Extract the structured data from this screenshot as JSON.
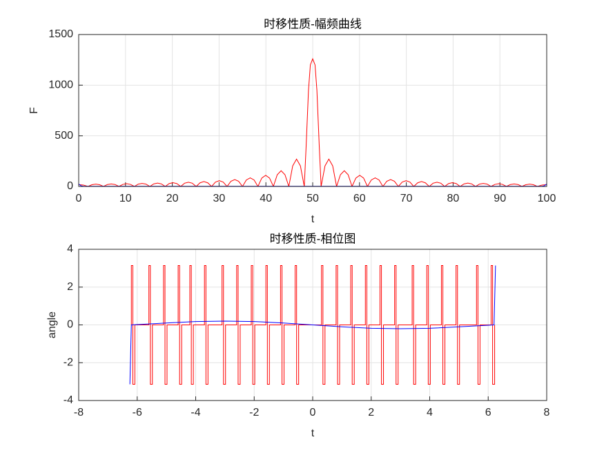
{
  "chart_data": [
    {
      "type": "line",
      "title": "时移性质-幅频曲线",
      "xlabel": "t",
      "ylabel": "F",
      "xlim": [
        0,
        100
      ],
      "ylim": [
        0,
        1500
      ],
      "xticks": [
        0,
        10,
        20,
        30,
        40,
        50,
        60,
        70,
        80,
        90,
        100
      ],
      "yticks": [
        0,
        500,
        1000,
        1500
      ],
      "grid": true,
      "series": [
        {
          "color": "#ff0000",
          "x": [
            0,
            1,
            2.0,
            2.825,
            3.65,
            4.475,
            5.3,
            6.125,
            6.95,
            7.775,
            8.6,
            9.425,
            10.25,
            11.075,
            11.9,
            12.725,
            13.55,
            14.375,
            15.2,
            16.025,
            16.85,
            17.675,
            18.5,
            19.325,
            20.15,
            20.975,
            21.8,
            22.625,
            23.45,
            24.275,
            25.1,
            25.925,
            26.75,
            27.575,
            28.4,
            29.225,
            30.05,
            30.875,
            31.7,
            32.525,
            33.35,
            34.175,
            35,
            35.825,
            36.65,
            37.475,
            38.3,
            39.125,
            39.95,
            40.775,
            41.6,
            42.425,
            43.25,
            44.075,
            44.9,
            45.725,
            46.55,
            47.375,
            48.2,
            48.6,
            49.1,
            49.5,
            50,
            50.5,
            50.9,
            51.4,
            51.8,
            52.625,
            53.45,
            54.275,
            55.1,
            55.925,
            56.75,
            57.575,
            58.4,
            59.225,
            60.05,
            60.875,
            61.7,
            62.525,
            63.35,
            64.175,
            65,
            65.825,
            66.65,
            67.475,
            68.3,
            69.125,
            69.95,
            70.775,
            71.6,
            72.425,
            73.25,
            74.075,
            74.9,
            75.725,
            76.55,
            77.375,
            78.2,
            79.025,
            79.85,
            80.675,
            81.5,
            82.325,
            83.15,
            83.975,
            84.8,
            85.625,
            86.45,
            87.275,
            88.1,
            88.925,
            89.75,
            90.575,
            91.4,
            92.225,
            93.05,
            93.875,
            94.7,
            95.525,
            96.35,
            97.175,
            98,
            99,
            100
          ],
          "values": [
            18,
            14,
            0,
            17,
            23,
            17,
            0,
            19,
            25,
            19,
            0,
            20,
            27,
            20,
            0,
            23,
            30,
            23,
            0,
            25,
            33,
            25,
            0,
            28,
            37,
            28,
            0,
            32,
            42,
            32,
            0,
            36,
            48,
            36,
            0,
            43,
            57,
            43,
            0,
            51,
            68,
            51,
            0,
            64,
            85,
            64,
            0,
            83,
            110,
            83,
            0,
            116,
            155,
            116,
            0,
            203,
            270,
            203,
            0,
            400,
            950,
            1200,
            1260,
            1200,
            950,
            400,
            0,
            203,
            270,
            203,
            0,
            116,
            155,
            116,
            0,
            83,
            110,
            83,
            0,
            64,
            85,
            64,
            0,
            51,
            68,
            51,
            0,
            43,
            57,
            43,
            0,
            36,
            48,
            36,
            0,
            32,
            42,
            32,
            0,
            28,
            37,
            28,
            0,
            25,
            33,
            25,
            0,
            23,
            30,
            23,
            0,
            20,
            27,
            20,
            0,
            19,
            25,
            19,
            0,
            17,
            23,
            17,
            0,
            14,
            18
          ]
        },
        {
          "color": "#0000ff",
          "x": [
            0,
            0.5,
            1,
            99,
            99.5,
            100
          ],
          "values": [
            25,
            6,
            2,
            2,
            6,
            25
          ]
        }
      ]
    },
    {
      "type": "line",
      "title": "时移性质-相位图",
      "xlabel": "t",
      "ylabel": "angle",
      "xlim": [
        -8,
        8
      ],
      "ylim": [
        -4,
        4
      ],
      "xticks": [
        -8,
        -6,
        -4,
        -2,
        0,
        2,
        4,
        6,
        8
      ],
      "yticks": [
        -4,
        -2,
        0,
        2,
        4
      ],
      "grid": true,
      "series": [
        {
          "color": "#ff0000",
          "x": [
            -6.2,
            -6.2,
            -6.15,
            -6.15,
            -6.08,
            -6.08,
            -5.6,
            -5.6,
            -5.55,
            -5.55,
            -5.48,
            -5.48,
            -5.1,
            -5.1,
            -5.05,
            -5.05,
            -4.98,
            -4.98,
            -4.6,
            -4.6,
            -4.55,
            -4.55,
            -4.48,
            -4.48,
            -4.2,
            -4.2,
            -4.15,
            -4.15,
            -4.08,
            -4.08,
            -3.7,
            -3.7,
            -3.65,
            -3.65,
            -3.58,
            -3.58,
            -3.1,
            -3.1,
            -3.05,
            -3.05,
            -2.98,
            -2.98,
            -2.6,
            -2.6,
            -2.55,
            -2.55,
            -2.48,
            -2.48,
            -2.1,
            -2.1,
            -2.05,
            -2.05,
            -1.98,
            -1.98,
            -1.6,
            -1.6,
            -1.55,
            -1.55,
            -1.48,
            -1.48,
            -1.1,
            -1.1,
            -1.05,
            -1.05,
            -0.98,
            -0.98,
            -0.6,
            -0.6,
            -0.55,
            -0.55,
            -0.48,
            -0.48,
            0.3,
            0.3,
            0.35,
            0.35,
            0.42,
            0.42,
            0.8,
            0.8,
            0.85,
            0.85,
            0.92,
            0.92,
            1.3,
            1.3,
            1.35,
            1.35,
            1.42,
            1.42,
            1.8,
            1.8,
            1.85,
            1.85,
            1.92,
            1.92,
            2.3,
            2.3,
            2.35,
            2.35,
            2.42,
            2.42,
            2.8,
            2.8,
            2.85,
            2.85,
            2.92,
            2.92,
            3.4,
            3.4,
            3.45,
            3.45,
            3.52,
            3.52,
            3.9,
            3.9,
            3.95,
            3.95,
            4.02,
            4.02,
            4.4,
            4.4,
            4.45,
            4.45,
            4.52,
            4.52,
            4.9,
            4.9,
            4.95,
            4.95,
            5.02,
            5.02,
            5.6,
            5.6,
            5.65,
            5.65,
            5.72,
            5.72,
            6.1,
            6.1,
            6.15,
            6.15,
            6.22,
            6.22
          ],
          "values": [
            0,
            3.14,
            3.14,
            -3.14,
            -3.14,
            0,
            0,
            3.14,
            3.14,
            -3.14,
            -3.14,
            0,
            0,
            3.14,
            3.14,
            -3.14,
            -3.14,
            0,
            0,
            3.14,
            3.14,
            -3.14,
            -3.14,
            0,
            0,
            3.14,
            3.14,
            -3.14,
            -3.14,
            0,
            0,
            3.14,
            3.14,
            -3.14,
            -3.14,
            0,
            0,
            3.14,
            3.14,
            -3.14,
            -3.14,
            0,
            0,
            3.14,
            3.14,
            -3.14,
            -3.14,
            0,
            0,
            3.14,
            3.14,
            -3.14,
            -3.14,
            0,
            0,
            3.14,
            3.14,
            -3.14,
            -3.14,
            0,
            0,
            3.14,
            3.14,
            -3.14,
            -3.14,
            0,
            0,
            3.14,
            3.14,
            -3.14,
            -3.14,
            0,
            0,
            3.14,
            3.14,
            -3.14,
            -3.14,
            0,
            0,
            3.14,
            3.14,
            -3.14,
            -3.14,
            0,
            0,
            3.14,
            3.14,
            -3.14,
            -3.14,
            0,
            0,
            3.14,
            3.14,
            -3.14,
            -3.14,
            0,
            0,
            3.14,
            3.14,
            -3.14,
            -3.14,
            0,
            0,
            3.14,
            3.14,
            -3.14,
            -3.14,
            0,
            0,
            3.14,
            3.14,
            -3.14,
            -3.14,
            0,
            0,
            3.14,
            3.14,
            -3.14,
            -3.14,
            0,
            0,
            3.14,
            3.14,
            -3.14,
            -3.14,
            0,
            0,
            3.14,
            3.14,
            -3.14,
            -3.14,
            0,
            0,
            3.14,
            3.14,
            -3.14,
            -3.14,
            0,
            0,
            3.14,
            3.14,
            -3.14,
            -3.14,
            0
          ]
        },
        {
          "color": "#0000ff",
          "x": [
            -6.25,
            -6.2,
            -5,
            -4,
            -3,
            -2,
            -1,
            0,
            1,
            2,
            3,
            4,
            5,
            6,
            6.2,
            6.25
          ],
          "values": [
            -3.14,
            0,
            0.1,
            0.18,
            0.2,
            0.18,
            0.1,
            0,
            -0.1,
            -0.18,
            -0.2,
            -0.18,
            -0.1,
            -0.02,
            0,
            3.14
          ]
        }
      ]
    }
  ]
}
